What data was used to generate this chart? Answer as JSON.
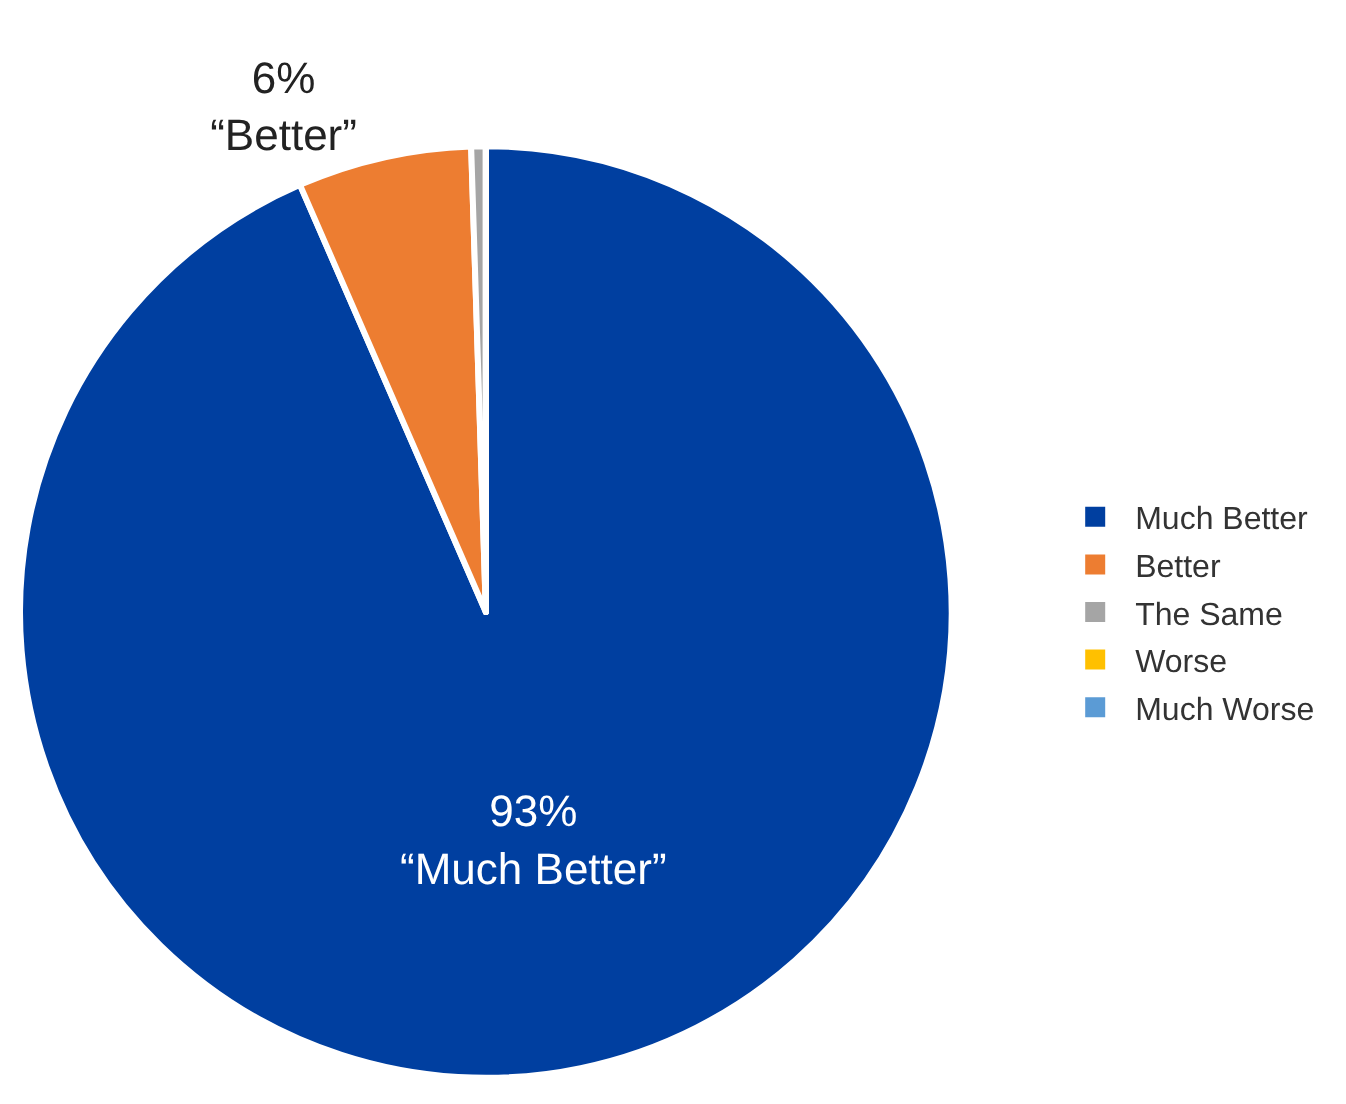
{
  "chart_data": {
    "type": "pie",
    "categories": [
      "Much Better",
      "Better",
      "The Same",
      "Worse",
      "Much Worse"
    ],
    "values": [
      93,
      6,
      0.5,
      0,
      0
    ],
    "colors": [
      "#003fa0",
      "#ed7d31",
      "#a5a5a5",
      "#ffc000",
      "#5b9bd5"
    ],
    "value_labels": [
      "93%\n“Much Better”",
      "6%\n“Better”",
      null,
      null,
      null
    ],
    "legend": "right"
  }
}
